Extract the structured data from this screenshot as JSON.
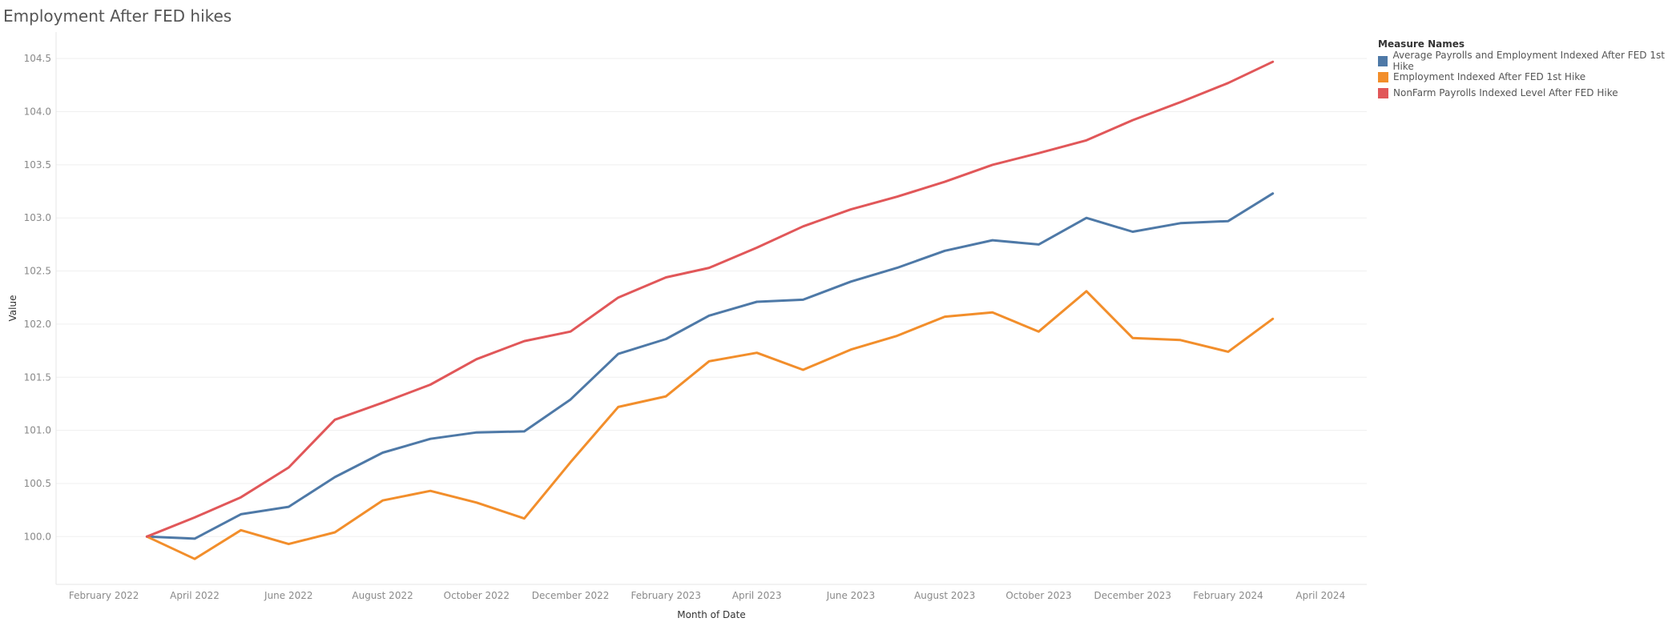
{
  "colors": {
    "avg": "#4e79a7",
    "emp": "#f28e2b",
    "nfp": "#e15759",
    "grid": "#efefef",
    "axis_text": "#8a8a8a"
  },
  "chart_data": {
    "type": "line",
    "title": "Employment After FED hikes",
    "xlabel": "Month of Date",
    "ylabel": "Value",
    "legend_title": "Measure Names",
    "legend_position": "top-right",
    "grid": true,
    "ylim": [
      99.55,
      104.75
    ],
    "yticks": [
      "100.0",
      "100.5",
      "101.0",
      "101.5",
      "102.0",
      "102.5",
      "103.0",
      "103.5",
      "104.0",
      "104.5"
    ],
    "xrange": [
      "2022-01-01",
      "2024-05-01"
    ],
    "xticks": [
      {
        "date": "2022-02-01",
        "label": "February 2022"
      },
      {
        "date": "2022-04-01",
        "label": "April 2022"
      },
      {
        "date": "2022-06-01",
        "label": "June 2022"
      },
      {
        "date": "2022-08-01",
        "label": "August 2022"
      },
      {
        "date": "2022-10-01",
        "label": "October 2022"
      },
      {
        "date": "2022-12-01",
        "label": "December 2022"
      },
      {
        "date": "2023-02-01",
        "label": "February 2023"
      },
      {
        "date": "2023-04-01",
        "label": "April 2023"
      },
      {
        "date": "2023-06-01",
        "label": "June 2023"
      },
      {
        "date": "2023-08-01",
        "label": "August 2023"
      },
      {
        "date": "2023-10-01",
        "label": "October 2023"
      },
      {
        "date": "2023-12-01",
        "label": "December 2023"
      },
      {
        "date": "2024-02-01",
        "label": "February 2024"
      },
      {
        "date": "2024-04-01",
        "label": "April 2024"
      }
    ],
    "x": [
      "2022-03-01",
      "2022-04-01",
      "2022-05-01",
      "2022-06-01",
      "2022-07-01",
      "2022-08-01",
      "2022-09-01",
      "2022-10-01",
      "2022-11-01",
      "2022-12-01",
      "2023-01-01",
      "2023-02-01",
      "2023-03-01",
      "2023-04-01",
      "2023-05-01",
      "2023-06-01",
      "2023-07-01",
      "2023-08-01",
      "2023-09-01",
      "2023-10-01",
      "2023-11-01",
      "2023-12-01",
      "2024-01-01",
      "2024-02-01",
      "2024-03-01"
    ],
    "series": [
      {
        "name": "Average Payrolls and Employment Indexed After FED 1st Hike",
        "color_key": "avg",
        "values": [
          100.0,
          99.98,
          100.21,
          100.28,
          100.56,
          100.79,
          100.92,
          100.98,
          100.99,
          101.29,
          101.72,
          101.86,
          102.08,
          102.21,
          102.23,
          102.4,
          102.53,
          102.69,
          102.79,
          102.75,
          103.0,
          102.87,
          102.95,
          102.97,
          103.23
        ]
      },
      {
        "name": "Employment Indexed After FED 1st Hike",
        "color_key": "emp",
        "values": [
          100.0,
          99.79,
          100.06,
          99.93,
          100.04,
          100.34,
          100.43,
          100.32,
          100.17,
          100.7,
          101.22,
          101.32,
          101.65,
          101.73,
          101.57,
          101.76,
          101.89,
          102.07,
          102.11,
          101.93,
          102.31,
          101.87,
          101.85,
          101.74,
          102.05
        ]
      },
      {
        "name": "NonFarm Payrolls Indexed Level After FED Hike",
        "color_key": "nfp",
        "values": [
          100.0,
          100.18,
          100.37,
          100.65,
          101.1,
          101.26,
          101.43,
          101.67,
          101.84,
          101.93,
          102.25,
          102.44,
          102.53,
          102.72,
          102.92,
          103.08,
          103.2,
          103.34,
          103.5,
          103.61,
          103.73,
          103.92,
          104.09,
          104.27,
          104.47
        ]
      }
    ]
  }
}
